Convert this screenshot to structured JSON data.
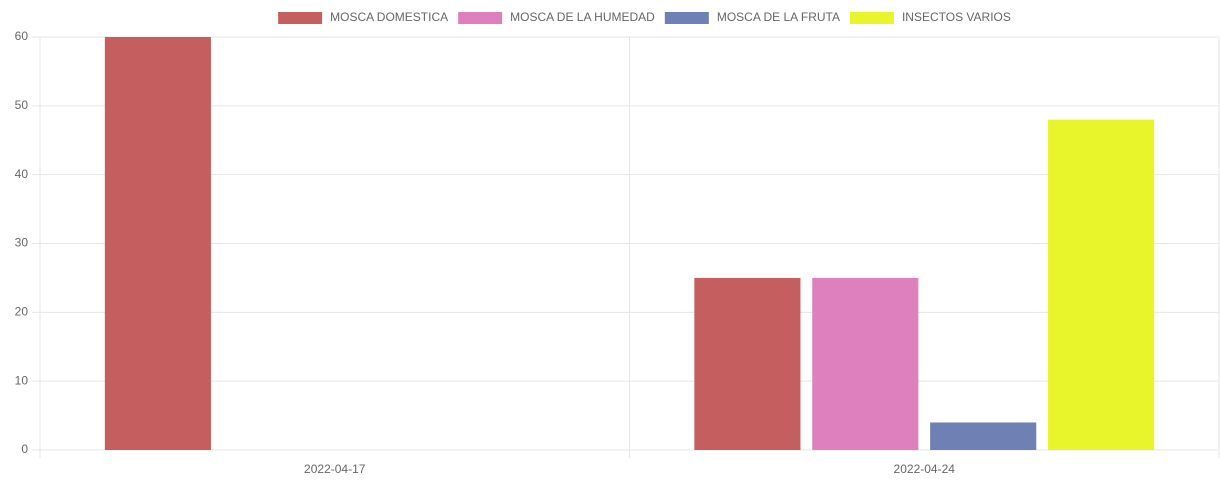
{
  "chart_data": {
    "type": "bar",
    "categories": [
      "2022-04-17",
      "2022-04-24"
    ],
    "series": [
      {
        "name": "MOSCA DOMESTICA",
        "color": "#c55f5f",
        "values": [
          60,
          25
        ]
      },
      {
        "name": "MOSCA DE LA HUMEDAD",
        "color": "#dd80bd",
        "values": [
          0,
          25
        ]
      },
      {
        "name": "MOSCA DE LA FRUTA",
        "color": "#6f80b5",
        "values": [
          0,
          4
        ]
      },
      {
        "name": "INSECTOS VARIOS",
        "color": "#e9f52b",
        "values": [
          0,
          48
        ]
      }
    ],
    "ylim": [
      0,
      60
    ],
    "yticks": [
      0,
      10,
      20,
      30,
      40,
      50,
      60
    ],
    "grid": true,
    "legend": "top"
  }
}
